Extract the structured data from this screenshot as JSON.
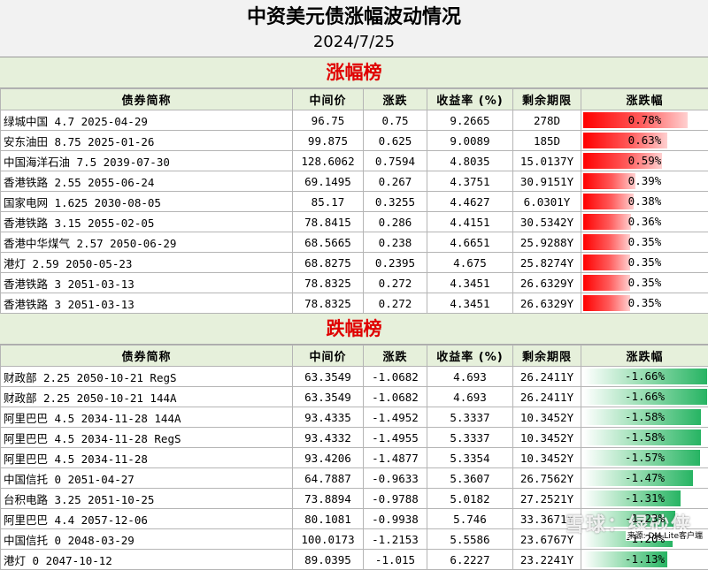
{
  "header": {
    "title": "中资美元债涨幅波动情况",
    "date": "2024/7/25"
  },
  "columns": [
    "债券简称",
    "中间价",
    "涨跌",
    "收益率 (%)",
    "剩余期限",
    "涨跌幅"
  ],
  "gainers": {
    "title": "涨幅榜",
    "rows": [
      {
        "name": "绿城中国 4.7 2025-04-29",
        "mid": "96.75",
        "change": "0.75",
        "yield": "9.2665",
        "term": "278D",
        "pct_label": "0.78%",
        "pct": 0.78
      },
      {
        "name": "安东油田 8.75 2025-01-26",
        "mid": "99.875",
        "change": "0.625",
        "yield": "9.0089",
        "term": "185D",
        "pct_label": "0.63%",
        "pct": 0.63
      },
      {
        "name": "中国海洋石油 7.5 2039-07-30",
        "mid": "128.6062",
        "change": "0.7594",
        "yield": "4.8035",
        "term": "15.0137Y",
        "pct_label": "0.59%",
        "pct": 0.59
      },
      {
        "name": "香港铁路 2.55 2055-06-24",
        "mid": "69.1495",
        "change": "0.267",
        "yield": "4.3751",
        "term": "30.9151Y",
        "pct_label": "0.39%",
        "pct": 0.39
      },
      {
        "name": "国家电网 1.625 2030-08-05",
        "mid": "85.17",
        "change": "0.3255",
        "yield": "4.4627",
        "term": "6.0301Y",
        "pct_label": "0.38%",
        "pct": 0.38
      },
      {
        "name": "香港铁路 3.15 2055-02-05",
        "mid": "78.8415",
        "change": "0.286",
        "yield": "4.4151",
        "term": "30.5342Y",
        "pct_label": "0.36%",
        "pct": 0.36
      },
      {
        "name": "香港中华煤气 2.57 2050-06-29",
        "mid": "68.5665",
        "change": "0.238",
        "yield": "4.6651",
        "term": "25.9288Y",
        "pct_label": "0.35%",
        "pct": 0.35
      },
      {
        "name": "港灯 2.59 2050-05-23",
        "mid": "68.8275",
        "change": "0.2395",
        "yield": "4.675",
        "term": "25.8274Y",
        "pct_label": "0.35%",
        "pct": 0.35
      },
      {
        "name": "香港铁路 3 2051-03-13",
        "mid": "78.8325",
        "change": "0.272",
        "yield": "4.3451",
        "term": "26.6329Y",
        "pct_label": "0.35%",
        "pct": 0.35
      },
      {
        "name": "香港铁路 3 2051-03-13",
        "mid": "78.8325",
        "change": "0.272",
        "yield": "4.3451",
        "term": "26.6329Y",
        "pct_label": "0.35%",
        "pct": 0.35
      }
    ]
  },
  "losers": {
    "title": "跌幅榜",
    "rows": [
      {
        "name": "财政部 2.25 2050-10-21 RegS",
        "mid": "63.3549",
        "change": "-1.0682",
        "yield": "4.693",
        "term": "26.2411Y",
        "pct_label": "-1.66%",
        "pct": -1.66
      },
      {
        "name": "财政部 2.25 2050-10-21 144A",
        "mid": "63.3549",
        "change": "-1.0682",
        "yield": "4.693",
        "term": "26.2411Y",
        "pct_label": "-1.66%",
        "pct": -1.66
      },
      {
        "name": "阿里巴巴 4.5 2034-11-28 144A",
        "mid": "93.4335",
        "change": "-1.4952",
        "yield": "5.3337",
        "term": "10.3452Y",
        "pct_label": "-1.58%",
        "pct": -1.58
      },
      {
        "name": "阿里巴巴 4.5 2034-11-28 RegS",
        "mid": "93.4332",
        "change": "-1.4955",
        "yield": "5.3337",
        "term": "10.3452Y",
        "pct_label": "-1.58%",
        "pct": -1.58
      },
      {
        "name": "阿里巴巴 4.5 2034-11-28",
        "mid": "93.4206",
        "change": "-1.4877",
        "yield": "5.3354",
        "term": "10.3452Y",
        "pct_label": "-1.57%",
        "pct": -1.57
      },
      {
        "name": "中国信托 0 2051-04-27",
        "mid": "64.7887",
        "change": "-0.9633",
        "yield": "5.3607",
        "term": "26.7562Y",
        "pct_label": "-1.47%",
        "pct": -1.47
      },
      {
        "name": "台积电路 3.25 2051-10-25",
        "mid": "73.8894",
        "change": "-0.9788",
        "yield": "5.0182",
        "term": "27.2521Y",
        "pct_label": "-1.31%",
        "pct": -1.31
      },
      {
        "name": "阿里巴巴 4.4 2057-12-06",
        "mid": "80.1081",
        "change": "-0.9938",
        "yield": "5.746",
        "term": "33.3671Y",
        "pct_label": "-1.23%",
        "pct": -1.23
      },
      {
        "name": "中国信托 0 2048-03-29",
        "mid": "100.0173",
        "change": "-1.2153",
        "yield": "5.5586",
        "term": "23.6767Y",
        "pct_label": "-1.20%",
        "pct": -1.2
      },
      {
        "name": "港灯 0 2047-10-12",
        "mid": "89.0395",
        "change": "-1.015",
        "yield": "6.2227",
        "term": "23.2241Y",
        "pct_label": "-1.13%",
        "pct": -1.13
      }
    ]
  },
  "footer": {
    "watermark": "雪球：绿砂侠",
    "source": "来源: DM-Lite客户端"
  }
}
